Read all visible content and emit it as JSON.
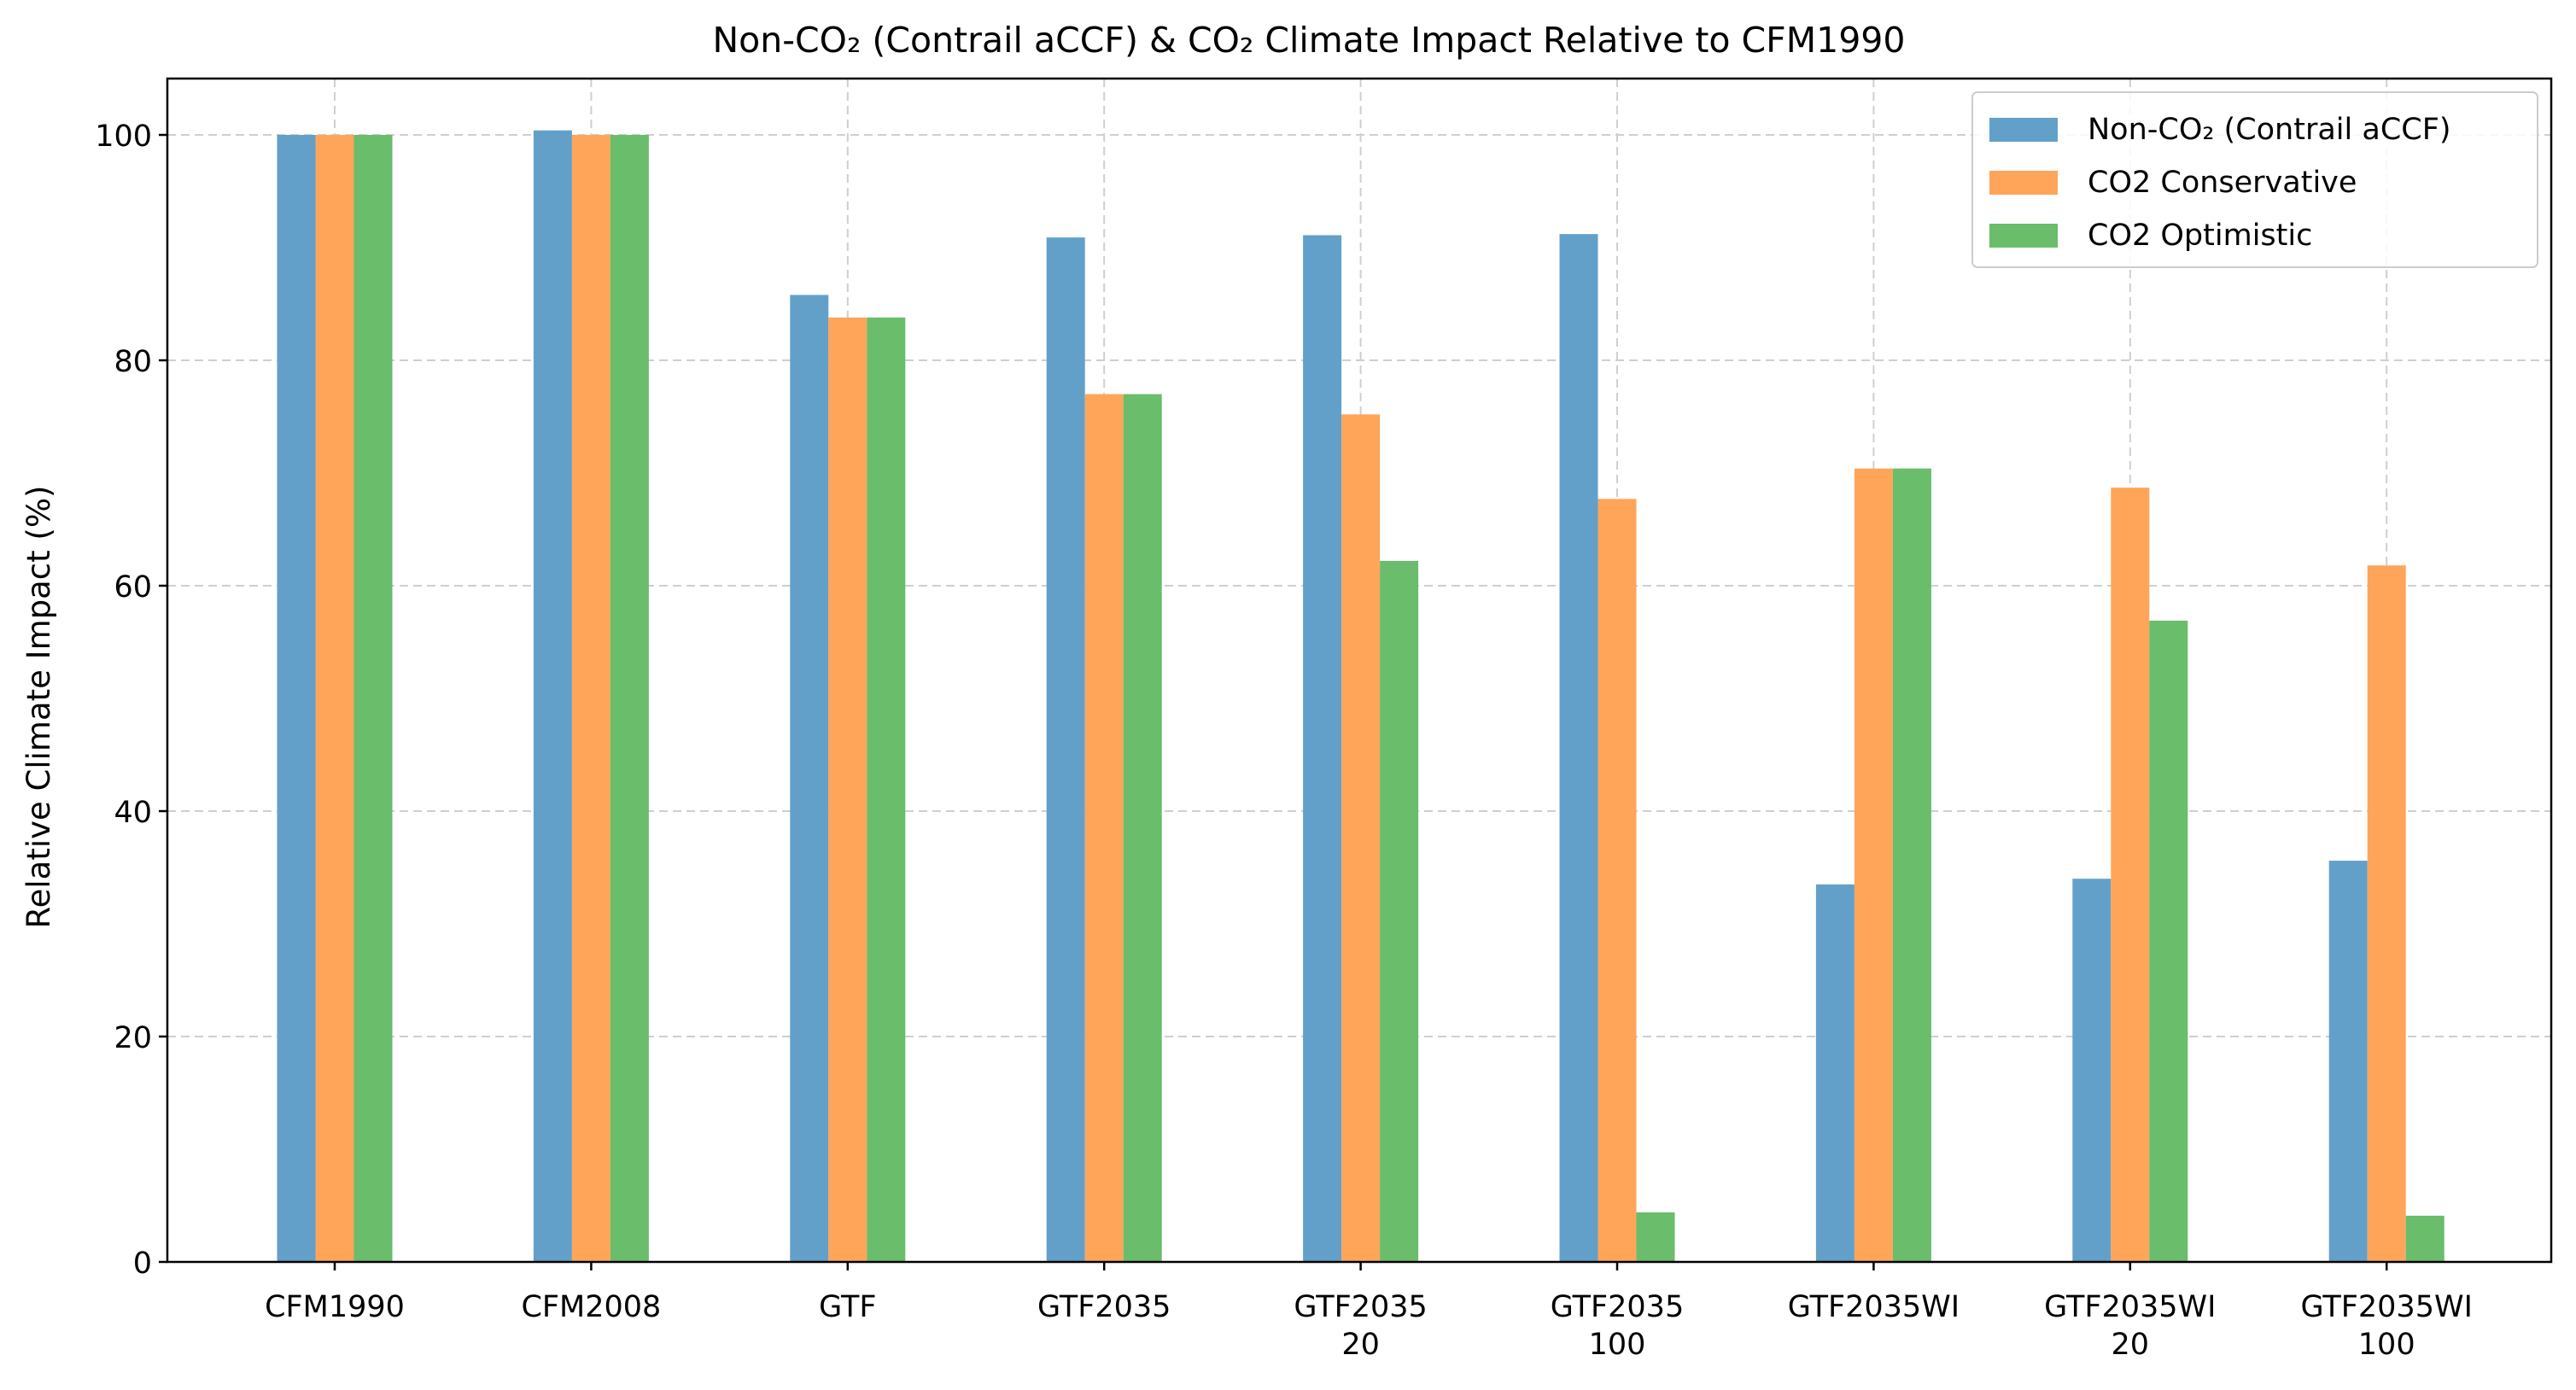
{
  "chart_data": {
    "type": "bar",
    "title": "Non-CO₂ (Contrail aCCF) & CO₂ Climate Impact Relative to CFM1990",
    "xlabel": "",
    "ylabel": "Relative Climate Impact (%)",
    "ylim": [
      0,
      105
    ],
    "yticks": [
      0,
      20,
      40,
      60,
      80,
      100
    ],
    "grid": true,
    "legend_position": "top-right",
    "categories": [
      [
        "CFM1990"
      ],
      [
        "CFM2008"
      ],
      [
        "GTF"
      ],
      [
        "GTF2035"
      ],
      [
        "GTF2035",
        "20"
      ],
      [
        "GTF2035",
        "100"
      ],
      [
        "GTF2035WI"
      ],
      [
        "GTF2035WI",
        "20"
      ],
      [
        "GTF2035WI",
        "100"
      ]
    ],
    "series": [
      {
        "name": "Non-CO₂ (Contrail aCCF)",
        "color": "#62a0ca",
        "values": [
          100,
          100.4,
          85.8,
          90.9,
          91.1,
          91.2,
          33.5,
          34.0,
          35.6
        ]
      },
      {
        "name": "CO2 Conservative",
        "color": "#fea55a",
        "values": [
          100,
          100,
          83.8,
          77.0,
          75.2,
          67.7,
          70.4,
          68.7,
          61.8
        ]
      },
      {
        "name": "CO2 Optimistic",
        "color": "#69bd6b",
        "values": [
          100,
          100,
          83.8,
          77.0,
          62.2,
          4.4,
          70.4,
          56.9,
          4.1
        ]
      }
    ]
  }
}
